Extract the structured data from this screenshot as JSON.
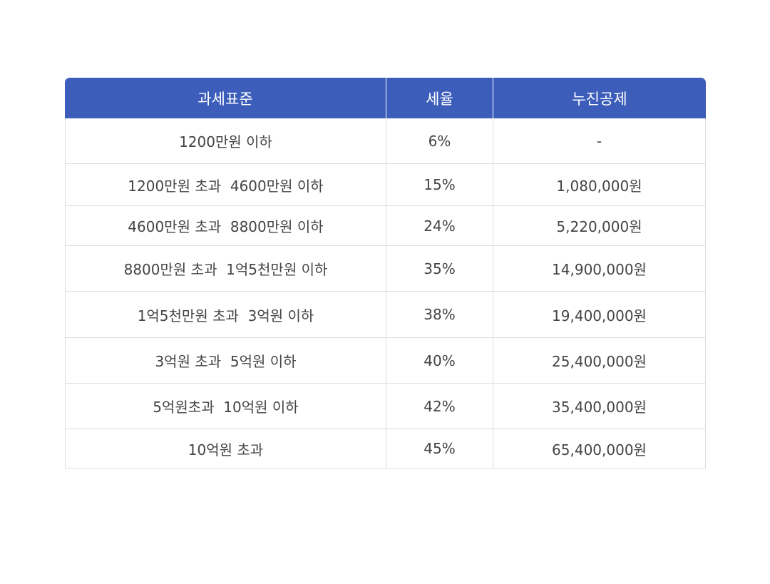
{
  "table": {
    "headers": [
      "과세표준",
      "세율",
      "누진공제"
    ],
    "rows": [
      [
        "1200만원 이하",
        "6%",
        "-"
      ],
      [
        "1200만원 초과  4600만원 이하",
        "15%",
        "1,080,000원"
      ],
      [
        "4600만원 초과  8800만원 이하",
        "24%",
        "5,220,000원"
      ],
      [
        "8800만원 초과  1억5천만원 이하",
        "35%",
        "14,900,000원"
      ],
      [
        "1억5천만원 초과  3억원 이하",
        "38%",
        "19,400,000원"
      ],
      [
        "3억원 초과  5억원 이하",
        "40%",
        "25,400,000원"
      ],
      [
        "5억원초과  10억원 이하",
        "42%",
        "35,400,000원"
      ],
      [
        "10억원 초과",
        "45%",
        "65,400,000원"
      ]
    ]
  },
  "colors": {
    "header_bg": "#3d5dbb",
    "header_text": "#ffffff",
    "cell_text": "#444444",
    "border": "#dedede"
  }
}
